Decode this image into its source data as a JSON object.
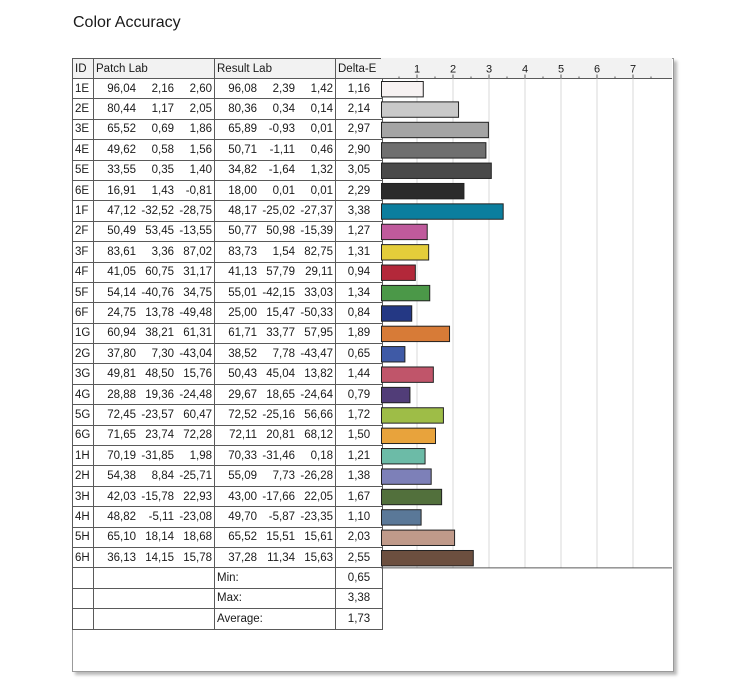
{
  "title": "Color Accuracy",
  "table": {
    "headers": {
      "id": "ID",
      "patch": "Patch Lab",
      "result": "Result Lab",
      "de": "Delta-E"
    },
    "rows": [
      {
        "id": "1E",
        "patch": [
          "96,04",
          "2,16",
          "2,60"
        ],
        "result": [
          "96,08",
          "2,39",
          "1,42"
        ],
        "de": "1,16"
      },
      {
        "id": "2E",
        "patch": [
          "80,44",
          "1,17",
          "2,05"
        ],
        "result": [
          "80,36",
          "0,34",
          "0,14"
        ],
        "de": "2,14"
      },
      {
        "id": "3E",
        "patch": [
          "65,52",
          "0,69",
          "1,86"
        ],
        "result": [
          "65,89",
          "-0,93",
          "0,01"
        ],
        "de": "2,97"
      },
      {
        "id": "4E",
        "patch": [
          "49,62",
          "0,58",
          "1,56"
        ],
        "result": [
          "50,71",
          "-1,11",
          "0,46"
        ],
        "de": "2,90"
      },
      {
        "id": "5E",
        "patch": [
          "33,55",
          "0,35",
          "1,40"
        ],
        "result": [
          "34,82",
          "-1,64",
          "1,32"
        ],
        "de": "3,05"
      },
      {
        "id": "6E",
        "patch": [
          "16,91",
          "1,43",
          "-0,81"
        ],
        "result": [
          "18,00",
          "0,01",
          "0,01"
        ],
        "de": "2,29"
      },
      {
        "id": "1F",
        "patch": [
          "47,12",
          "-32,52",
          "-28,75"
        ],
        "result": [
          "48,17",
          "-25,02",
          "-27,37"
        ],
        "de": "3,38"
      },
      {
        "id": "2F",
        "patch": [
          "50,49",
          "53,45",
          "-13,55"
        ],
        "result": [
          "50,77",
          "50,98",
          "-15,39"
        ],
        "de": "1,27"
      },
      {
        "id": "3F",
        "patch": [
          "83,61",
          "3,36",
          "87,02"
        ],
        "result": [
          "83,73",
          "1,54",
          "82,75"
        ],
        "de": "1,31"
      },
      {
        "id": "4F",
        "patch": [
          "41,05",
          "60,75",
          "31,17"
        ],
        "result": [
          "41,13",
          "57,79",
          "29,11"
        ],
        "de": "0,94"
      },
      {
        "id": "5F",
        "patch": [
          "54,14",
          "-40,76",
          "34,75"
        ],
        "result": [
          "55,01",
          "-42,15",
          "33,03"
        ],
        "de": "1,34"
      },
      {
        "id": "6F",
        "patch": [
          "24,75",
          "13,78",
          "-49,48"
        ],
        "result": [
          "25,00",
          "15,47",
          "-50,33"
        ],
        "de": "0,84"
      },
      {
        "id": "1G",
        "patch": [
          "60,94",
          "38,21",
          "61,31"
        ],
        "result": [
          "61,71",
          "33,77",
          "57,95"
        ],
        "de": "1,89"
      },
      {
        "id": "2G",
        "patch": [
          "37,80",
          "7,30",
          "-43,04"
        ],
        "result": [
          "38,52",
          "7,78",
          "-43,47"
        ],
        "de": "0,65"
      },
      {
        "id": "3G",
        "patch": [
          "49,81",
          "48,50",
          "15,76"
        ],
        "result": [
          "50,43",
          "45,04",
          "13,82"
        ],
        "de": "1,44"
      },
      {
        "id": "4G",
        "patch": [
          "28,88",
          "19,36",
          "-24,48"
        ],
        "result": [
          "29,67",
          "18,65",
          "-24,64"
        ],
        "de": "0,79"
      },
      {
        "id": "5G",
        "patch": [
          "72,45",
          "-23,57",
          "60,47"
        ],
        "result": [
          "72,52",
          "-25,16",
          "56,66"
        ],
        "de": "1,72"
      },
      {
        "id": "6G",
        "patch": [
          "71,65",
          "23,74",
          "72,28"
        ],
        "result": [
          "72,11",
          "20,81",
          "68,12"
        ],
        "de": "1,50"
      },
      {
        "id": "1H",
        "patch": [
          "70,19",
          "-31,85",
          "1,98"
        ],
        "result": [
          "70,33",
          "-31,46",
          "0,18"
        ],
        "de": "1,21"
      },
      {
        "id": "2H",
        "patch": [
          "54,38",
          "8,84",
          "-25,71"
        ],
        "result": [
          "55,09",
          "7,73",
          "-26,28"
        ],
        "de": "1,38"
      },
      {
        "id": "3H",
        "patch": [
          "42,03",
          "-15,78",
          "22,93"
        ],
        "result": [
          "43,00",
          "-17,66",
          "22,05"
        ],
        "de": "1,67"
      },
      {
        "id": "4H",
        "patch": [
          "48,82",
          "-5,11",
          "-23,08"
        ],
        "result": [
          "49,70",
          "-5,87",
          "-23,35"
        ],
        "de": "1,10"
      },
      {
        "id": "5H",
        "patch": [
          "65,10",
          "18,14",
          "18,68"
        ],
        "result": [
          "65,52",
          "15,51",
          "15,61"
        ],
        "de": "2,03"
      },
      {
        "id": "6H",
        "patch": [
          "36,13",
          "14,15",
          "15,78"
        ],
        "result": [
          "37,28",
          "11,34",
          "15,63"
        ],
        "de": "2,55"
      }
    ],
    "summary": [
      {
        "label": "Min:",
        "value": "0,65"
      },
      {
        "label": "Max:",
        "value": "3,38"
      },
      {
        "label": "Average:",
        "value": "1,73"
      }
    ]
  },
  "chart_data": {
    "type": "bar",
    "orientation": "horizontal",
    "x_ticks": [
      "1",
      "2",
      "3",
      "4",
      "5",
      "6",
      "7"
    ],
    "xlim": [
      0,
      7.5
    ],
    "grid": true,
    "categories": [
      "1E",
      "2E",
      "3E",
      "4E",
      "5E",
      "6E",
      "1F",
      "2F",
      "3F",
      "4F",
      "5F",
      "6F",
      "1G",
      "2G",
      "3G",
      "4G",
      "5G",
      "6G",
      "1H",
      "2H",
      "3H",
      "4H",
      "5H",
      "6H"
    ],
    "values": [
      1.16,
      2.14,
      2.97,
      2.9,
      3.05,
      2.29,
      3.38,
      1.27,
      1.31,
      0.94,
      1.34,
      0.84,
      1.89,
      0.65,
      1.44,
      0.79,
      1.72,
      1.5,
      1.21,
      1.38,
      1.67,
      1.1,
      2.03,
      2.55
    ],
    "colors": [
      "#f7f2f2",
      "#c9c9c9",
      "#a4a4a4",
      "#6f6f6f",
      "#4a4a4a",
      "#2b2b2b",
      "#0b7e9e",
      "#bf5a9c",
      "#e4cd3a",
      "#b3283a",
      "#4b9848",
      "#243884",
      "#d77b37",
      "#3f5aa6",
      "#c0556a",
      "#513d78",
      "#9ebd47",
      "#e8a33c",
      "#6cbba7",
      "#7d80b8",
      "#52703c",
      "#5a7898",
      "#c09a8a",
      "#6c4f3f"
    ]
  }
}
